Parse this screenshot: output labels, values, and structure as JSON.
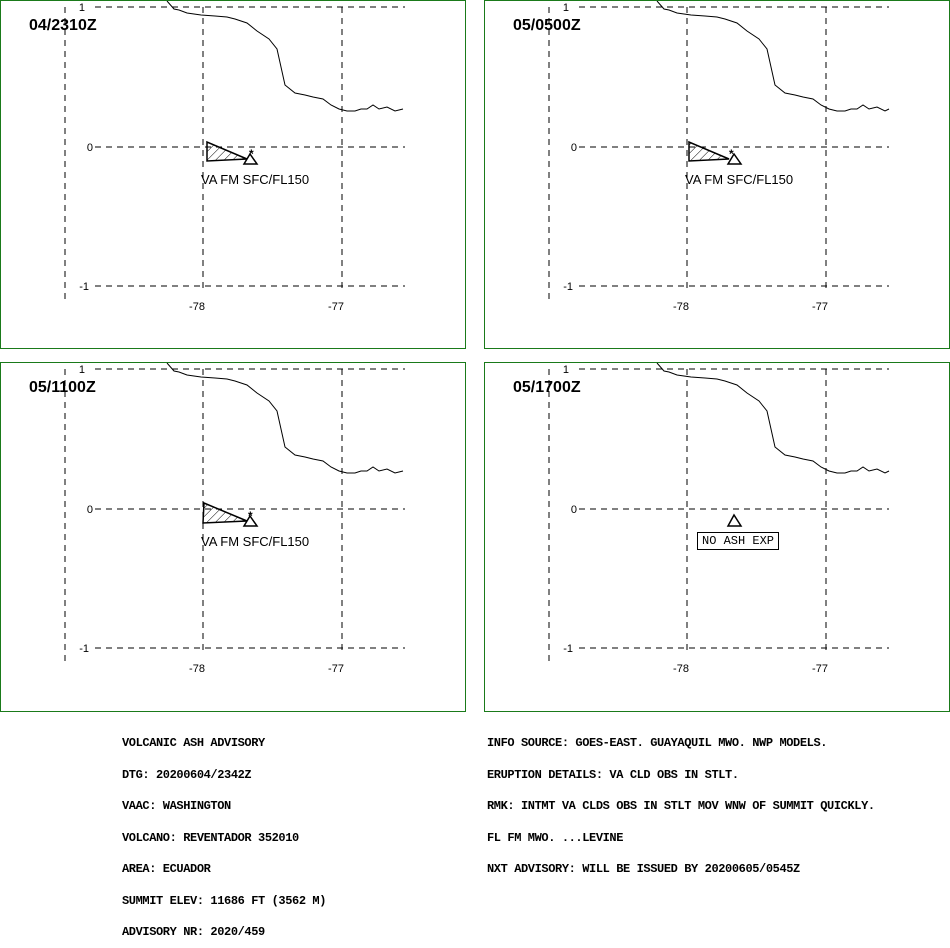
{
  "grid_labels": {
    "lat_top": "1",
    "lat_mid": "0",
    "lat_bottom": "-1",
    "lon_left": "-78",
    "lon_right": "-77"
  },
  "panels": [
    {
      "time": "04/2310Z",
      "ash_label": "VA FM SFC/FL150",
      "has_ash": true
    },
    {
      "time": "05/0500Z",
      "ash_label": "VA FM SFC/FL150",
      "has_ash": true
    },
    {
      "time": "05/1100Z",
      "ash_label": "VA FM SFC/FL150",
      "has_ash": true
    },
    {
      "time": "05/1700Z",
      "ash_label": "NO ASH EXP",
      "has_ash": false
    }
  ],
  "advisory_left": [
    "VOLCANIC ASH ADVISORY",
    "DTG: 20200604/2342Z",
    "VAAC: WASHINGTON",
    "VOLCANO: REVENTADOR 352010",
    "AREA: ECUADOR",
    "SUMMIT ELEV: 11686 FT (3562 M)",
    "ADVISORY NR: 2020/459"
  ],
  "advisory_right": [
    "INFO SOURCE: GOES-EAST. GUAYAQUIL MWO. NWP MODELS.",
    "ERUPTION DETAILS: VA CLD OBS IN STLT.",
    "RMK: INTMT VA CLDS OBS IN STLT MOV WNW OF SUMMIT QUICKLY.",
    "FL FM MWO. ...LEVINE",
    "NXT ADVISORY: WILL BE ISSUED BY 20200605/0545Z"
  ]
}
